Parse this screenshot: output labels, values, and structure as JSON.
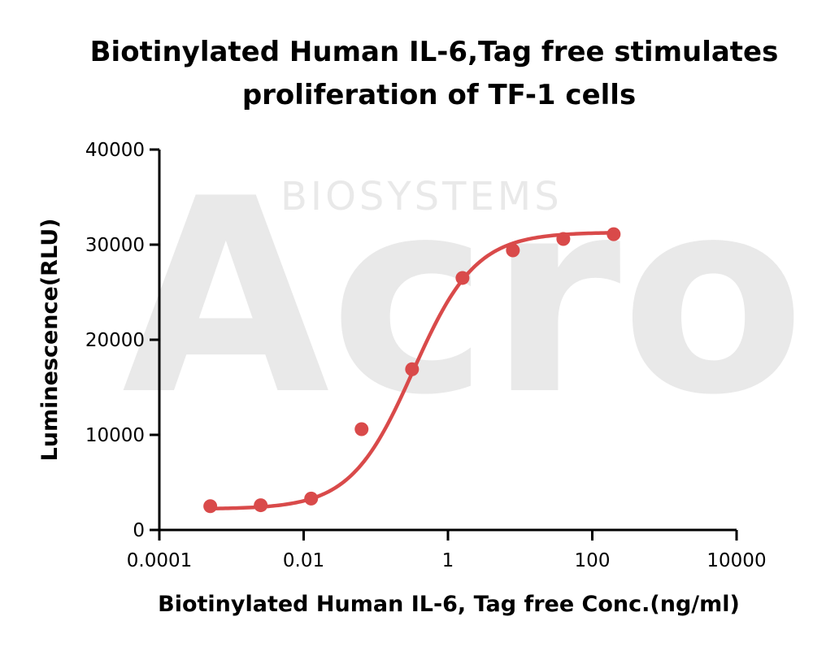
{
  "chart_data": {
    "type": "scatter",
    "title_lines": [
      "Biotinylated Human IL-6,Tag free stimulates",
      "proliferation of TF-1 cells"
    ],
    "xlabel": "Biotinylated Human IL-6, Tag free Conc.(ng/ml)",
    "ylabel": "Luminescence(RLU)",
    "x_scale": "log",
    "xlim": [
      0.0001,
      10000
    ],
    "ylim": [
      0,
      40000
    ],
    "x_ticks": [
      0.0001,
      0.01,
      1,
      100,
      10000
    ],
    "x_tick_labels": [
      "0.0001",
      "0.01",
      "1",
      "100",
      "10000"
    ],
    "y_ticks": [
      0,
      10000,
      20000,
      30000,
      40000
    ],
    "y_tick_labels": [
      "0",
      "10000",
      "20000",
      "30000",
      "40000"
    ],
    "grid": false,
    "series": [
      {
        "color": "#d94a4a",
        "points": [
          {
            "x": 0.000508,
            "y": 2500
          },
          {
            "x": 0.00254,
            "y": 2600
          },
          {
            "x": 0.0127,
            "y": 3300
          },
          {
            "x": 0.0635,
            "y": 10600
          },
          {
            "x": 0.318,
            "y": 16900
          },
          {
            "x": 1.59,
            "y": 26500
          },
          {
            "x": 7.94,
            "y": 29400
          },
          {
            "x": 39.7,
            "y": 30600
          },
          {
            "x": 198,
            "y": 31100
          }
        ],
        "fit": {
          "model": "4PL",
          "bottom": 2200,
          "top": 31300,
          "ec50": 0.33,
          "hill": 1.0
        }
      }
    ],
    "watermark": {
      "logo_text": "Acro",
      "sub_text": "BIOSYSTEMS"
    }
  }
}
